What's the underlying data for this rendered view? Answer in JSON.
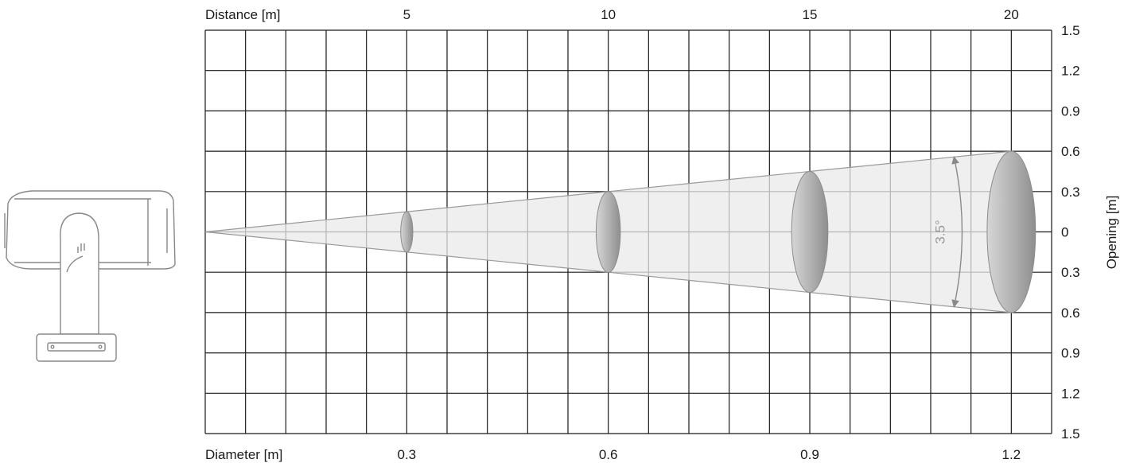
{
  "top_axis": {
    "label": "Distance [m]",
    "ticks": [
      {
        "value": 5,
        "text": "5"
      },
      {
        "value": 10,
        "text": "10"
      },
      {
        "value": 15,
        "text": "15"
      },
      {
        "value": 20,
        "text": "20"
      }
    ]
  },
  "bottom_axis": {
    "label": "Diameter [m]",
    "ticks": [
      {
        "value": 5,
        "text": "0.3"
      },
      {
        "value": 10,
        "text": "0.6"
      },
      {
        "value": 15,
        "text": "0.9"
      },
      {
        "value": 20,
        "text": "1.2"
      }
    ]
  },
  "right_axis": {
    "label": "Opening [m]",
    "ticks": [
      {
        "value": 1.5,
        "text": "1.5"
      },
      {
        "value": 1.2,
        "text": "1.2"
      },
      {
        "value": 0.9,
        "text": "0.9"
      },
      {
        "value": 0.6,
        "text": "0.6"
      },
      {
        "value": 0.3,
        "text": "0.3"
      },
      {
        "value": 0,
        "text": "0"
      },
      {
        "value": -0.3,
        "text": "0.3"
      },
      {
        "value": -0.6,
        "text": "0.6"
      },
      {
        "value": -0.9,
        "text": "0.9"
      },
      {
        "value": -1.2,
        "text": "1.2"
      },
      {
        "value": -1.5,
        "text": "1.5"
      }
    ]
  },
  "beam": {
    "angle_label": "3.5°",
    "cross_sections": [
      {
        "distance": 5,
        "half_opening": 0.15
      },
      {
        "distance": 10,
        "half_opening": 0.3
      },
      {
        "distance": 15,
        "half_opening": 0.45
      },
      {
        "distance": 20,
        "half_opening": 0.6
      }
    ],
    "max_distance": 20,
    "max_half_opening": 0.6
  },
  "fixture": {
    "icon": "moving-head-fixture-icon"
  },
  "colors": {
    "grid": "#1a1a1a",
    "beam_fill": "#e9e9e9",
    "beam_edge": "#9a9a9a",
    "arrow": "#8a8a8a"
  }
}
